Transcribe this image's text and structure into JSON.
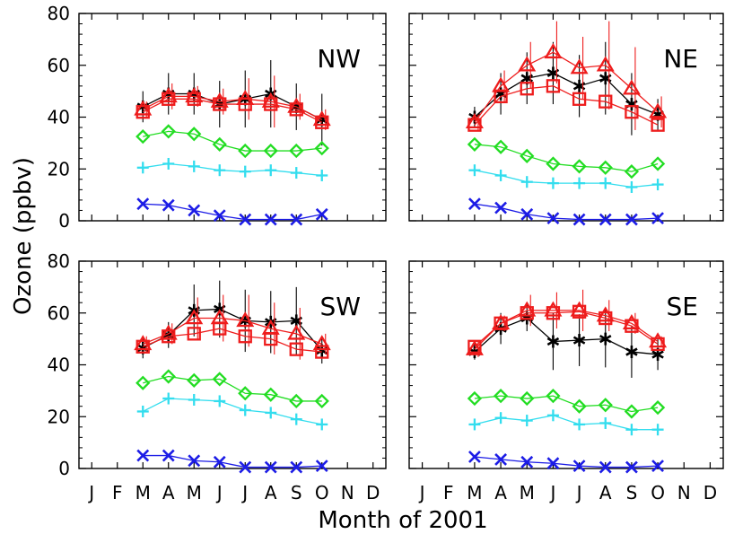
{
  "figure": {
    "xlabel": "Month of 2001",
    "ylabel": "Ozone (ppbv)",
    "months": [
      "J",
      "F",
      "M",
      "A",
      "M",
      "J",
      "J",
      "A",
      "S",
      "O",
      "N",
      "D"
    ],
    "yticks": [
      "0",
      "20",
      "40",
      "60",
      "80"
    ]
  },
  "colors": {
    "black": "#000000",
    "red": "#ee1c1c",
    "green": "#22dd22",
    "cyan": "#33ddee",
    "blue": "#1c1ce6"
  },
  "chart_data": [
    {
      "type": "line",
      "title": "NW",
      "x": [
        3,
        4,
        5,
        6,
        7,
        8,
        9,
        10
      ],
      "xlim": [
        0.5,
        12.5
      ],
      "ylim": [
        0,
        80
      ],
      "series": [
        {
          "marker": "asterisk",
          "color": "black",
          "values": [
            44,
            49,
            49,
            45,
            47,
            49,
            44,
            39
          ],
          "err": [
            6,
            8,
            8,
            9,
            11,
            13,
            9,
            10
          ]
        },
        {
          "marker": "triangle",
          "color": "red",
          "values": [
            43,
            48,
            48,
            46,
            47,
            46,
            44,
            39
          ],
          "err": [
            3,
            5,
            4,
            5,
            8,
            10,
            5,
            4
          ]
        },
        {
          "marker": "square",
          "color": "red",
          "values": [
            42,
            47,
            47,
            45,
            45,
            45,
            43,
            38
          ],
          "err": [
            0,
            0,
            0,
            0,
            0,
            0,
            0,
            0
          ]
        },
        {
          "marker": "diamond",
          "color": "green",
          "values": [
            32.5,
            34.5,
            33.5,
            29.5,
            27,
            27,
            27,
            28
          ]
        },
        {
          "marker": "plus",
          "color": "cyan",
          "values": [
            20.5,
            22,
            21,
            19.5,
            19,
            19.5,
            18.5,
            17.5
          ]
        },
        {
          "marker": "x",
          "color": "blue",
          "values": [
            6.5,
            6,
            4,
            2,
            0.5,
            0.5,
            0.5,
            2.5
          ]
        }
      ]
    },
    {
      "type": "line",
      "title": "NE",
      "x": [
        3,
        4,
        5,
        6,
        7,
        8,
        9,
        10
      ],
      "xlim": [
        0.5,
        12.5
      ],
      "ylim": [
        0,
        80
      ],
      "series": [
        {
          "marker": "asterisk",
          "color": "black",
          "values": [
            40,
            49,
            55,
            57,
            52,
            55,
            45,
            41
          ],
          "err": [
            4,
            8,
            10,
            12,
            12,
            14,
            12,
            6
          ]
        },
        {
          "marker": "triangle",
          "color": "red",
          "values": [
            38,
            52,
            60,
            65,
            59,
            60,
            51,
            42
          ],
          "err": [
            3,
            6,
            9,
            12,
            12,
            17,
            16,
            6
          ]
        },
        {
          "marker": "square",
          "color": "red",
          "values": [
            37,
            48,
            51,
            52,
            47,
            46,
            42,
            37
          ],
          "err": [
            0,
            0,
            0,
            0,
            0,
            0,
            0,
            0
          ]
        },
        {
          "marker": "diamond",
          "color": "green",
          "values": [
            29.5,
            28.5,
            25,
            22,
            21,
            20.5,
            19,
            22
          ]
        },
        {
          "marker": "plus",
          "color": "cyan",
          "values": [
            19.5,
            17.5,
            15,
            14.5,
            14.5,
            14.5,
            13,
            14
          ]
        },
        {
          "marker": "x",
          "color": "blue",
          "values": [
            6.5,
            5,
            2.5,
            1,
            0.5,
            0.5,
            0.5,
            1
          ]
        }
      ]
    },
    {
      "type": "line",
      "title": "SW",
      "x": [
        3,
        4,
        5,
        6,
        7,
        8,
        9,
        10
      ],
      "xlim": [
        0.5,
        12.5
      ],
      "ylim": [
        0,
        80
      ],
      "series": [
        {
          "marker": "asterisk",
          "color": "black",
          "values": [
            46.5,
            51.5,
            61,
            61.5,
            57,
            56.5,
            57,
            45.5
          ],
          "err": [
            4,
            5,
            10,
            11,
            12,
            12,
            13,
            5
          ]
        },
        {
          "marker": "triangle",
          "color": "red",
          "values": [
            48,
            52,
            58,
            58,
            57,
            54,
            52,
            48
          ],
          "err": [
            3,
            4,
            8,
            9,
            10,
            10,
            10,
            4
          ]
        },
        {
          "marker": "square",
          "color": "red",
          "values": [
            47,
            51,
            52,
            54,
            51,
            50,
            46,
            45
          ],
          "err": [
            0,
            0,
            0,
            0,
            0,
            0,
            0,
            0
          ]
        },
        {
          "marker": "diamond",
          "color": "green",
          "values": [
            33,
            35.5,
            34,
            34.5,
            29,
            28.5,
            26,
            26
          ]
        },
        {
          "marker": "plus",
          "color": "cyan",
          "values": [
            22,
            27,
            26.5,
            26,
            22.5,
            21.5,
            19,
            17
          ]
        },
        {
          "marker": "x",
          "color": "blue",
          "values": [
            5,
            5,
            3,
            2.5,
            0.5,
            0.5,
            0.5,
            1
          ]
        }
      ]
    },
    {
      "type": "line",
      "title": "SE",
      "x": [
        3,
        4,
        5,
        6,
        7,
        8,
        9,
        10
      ],
      "xlim": [
        0.5,
        12.5
      ],
      "ylim": [
        0,
        80
      ],
      "series": [
        {
          "marker": "asterisk",
          "color": "black",
          "values": [
            45,
            54,
            58,
            49,
            49.5,
            50,
            45,
            44
          ],
          "err": [
            3,
            6,
            5,
            11,
            10,
            11,
            10,
            6
          ]
        },
        {
          "marker": "triangle",
          "color": "red",
          "values": [
            46,
            56,
            61,
            61,
            61,
            59,
            56,
            49
          ],
          "err": [
            3,
            3,
            6,
            7,
            8,
            6,
            4,
            2
          ]
        },
        {
          "marker": "square",
          "color": "red",
          "values": [
            47,
            56,
            60,
            60,
            60.5,
            58,
            55,
            48
          ],
          "err": [
            0,
            0,
            0,
            0,
            0,
            0,
            0,
            0
          ]
        },
        {
          "marker": "diamond",
          "color": "green",
          "values": [
            27,
            28,
            27,
            28,
            24,
            24.5,
            22,
            23.5
          ]
        },
        {
          "marker": "plus",
          "color": "cyan",
          "values": [
            17,
            19.5,
            18.5,
            20.5,
            17,
            17.5,
            15,
            15
          ]
        },
        {
          "marker": "x",
          "color": "blue",
          "values": [
            4.5,
            3.5,
            2.5,
            2,
            1,
            0.5,
            0.5,
            1
          ]
        }
      ]
    }
  ]
}
